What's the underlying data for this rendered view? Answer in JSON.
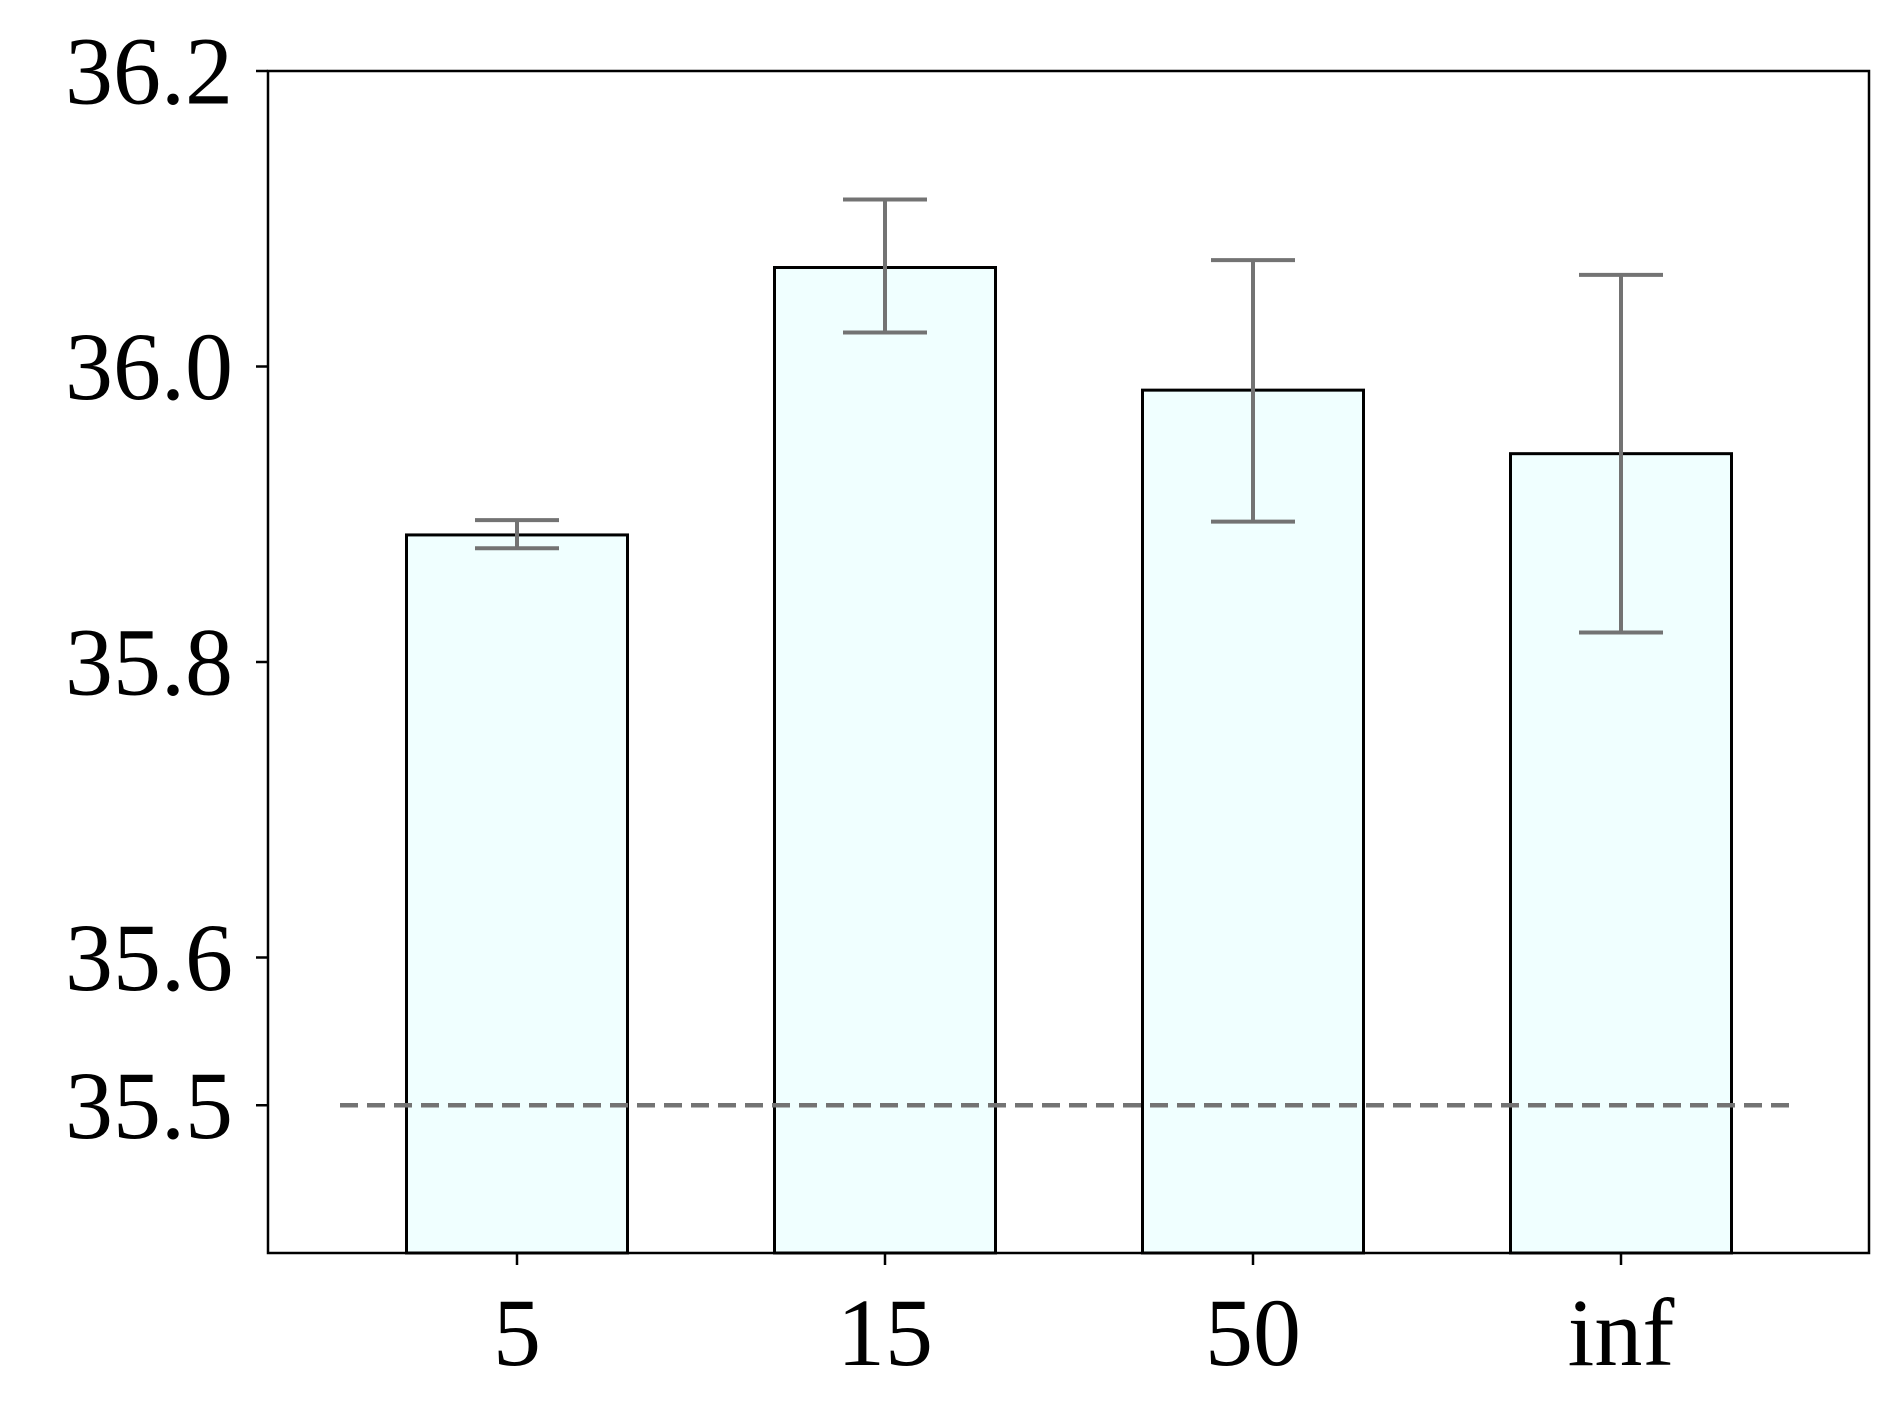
{
  "chart_data": {
    "type": "bar",
    "title": "",
    "xlabel": "",
    "ylabel": "",
    "categories": [
      "5",
      "15",
      "50",
      "inf"
    ],
    "values": [
      35.886,
      36.067,
      35.984,
      35.941
    ],
    "error_low": [
      35.877,
      36.023,
      35.895,
      35.82
    ],
    "error_high": [
      35.896,
      36.113,
      36.072,
      36.062
    ],
    "ylim": [
      35.4,
      36.2
    ],
    "yticks": [
      35.5,
      35.6,
      35.8,
      36.0,
      36.2
    ],
    "ytick_labels": [
      "35.5",
      "35.6",
      "35.8",
      "36.0",
      "36.2"
    ],
    "reference_line": {
      "value": 35.5,
      "style": "dashed"
    },
    "grid": false,
    "legend": "none",
    "colors": {
      "bar_fill": "#f0ffff",
      "bar_edge": "#000000",
      "errorbar": "#737373",
      "reference_line": "#737373",
      "axis": "#000000"
    }
  }
}
